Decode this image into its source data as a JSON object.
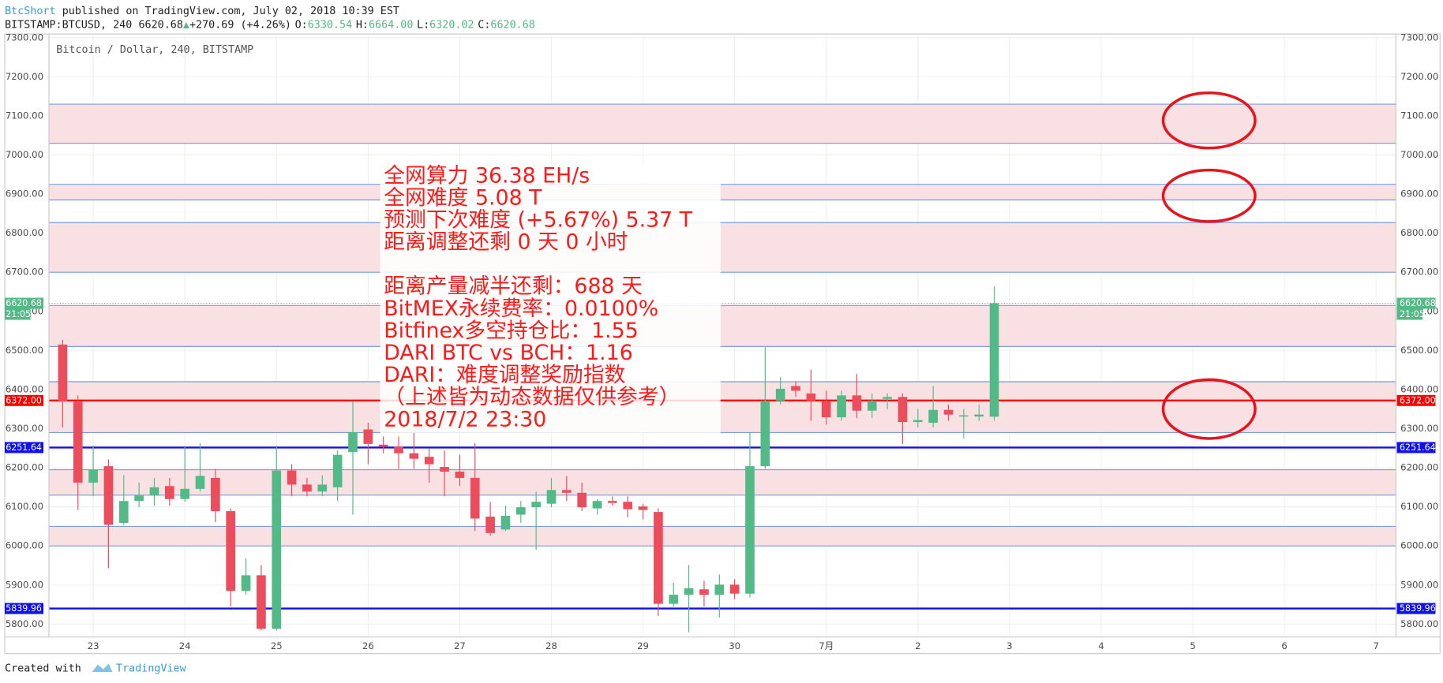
{
  "header": {
    "author": "BtcShort",
    "published": "published on TradingView.com, July 02, 2018 10:39 EST",
    "symbol": "BITSTAMP:BTCUSD, 240",
    "last": "6620.68",
    "arrow": "▲",
    "change": "+270.69 (+4.26%)",
    "ohlc": [
      {
        "label": "O:",
        "value": "6330.54"
      },
      {
        "label": "H:",
        "value": "6664.00"
      },
      {
        "label": "L:",
        "value": "6320.02"
      },
      {
        "label": "C:",
        "value": "6620.68"
      }
    ]
  },
  "footer": {
    "created": "Created with",
    "brand": "TradingView"
  },
  "chart_data": {
    "type": "candlestick",
    "title": "Bitcoin / Dollar, 240, BITSTAMP",
    "up_color": "#53b987",
    "down_color": "#eb4d5c",
    "open": [
      6515,
      6369,
      6162,
      6204,
      6059,
      6115,
      6129,
      6153,
      6120,
      6146,
      6174,
      6089,
      5885,
      5925,
      5788,
      6193,
      6157,
      6139,
      6150,
      6240,
      6298,
      6259,
      6254,
      6237,
      6228,
      6202,
      6190,
      6174,
      6075,
      6042,
      6080,
      6099,
      6108,
      6143,
      6136,
      6096,
      6115,
      6113,
      6101,
      6087,
      5852,
      5875,
      5889,
      5875,
      5901,
      5878,
      6204,
      6371,
      6409,
      6390,
      6371,
      6329,
      6385,
      6346,
      6376,
      6381,
      6317,
      6315,
      6348,
      6331,
      6331,
      6330.54
    ],
    "high": [
      6527,
      6385,
      6256,
      6221,
      6181,
      6162,
      6174,
      6174,
      6256,
      6263,
      6197,
      6096,
      5969,
      5951,
      6256,
      6209,
      6174,
      6181,
      6244,
      6369,
      6315,
      6280,
      6280,
      6291,
      6249,
      6244,
      6233,
      6263,
      6113,
      6103,
      6115,
      6139,
      6174,
      6179,
      6162,
      6120,
      6127,
      6127,
      6108,
      6096,
      5906,
      5951,
      5911,
      5927,
      5915,
      6291,
      6508,
      6432,
      6421,
      6451,
      6397,
      6397,
      6440,
      6390,
      6390,
      6390,
      6350,
      6409,
      6362,
      6350,
      6362,
      6664
    ],
    "low": [
      6303,
      6092,
      6127,
      5943,
      6054,
      6099,
      6103,
      6103,
      6113,
      6139,
      6061,
      5845,
      5875,
      5784,
      5784,
      6127,
      6127,
      6127,
      6115,
      6080,
      6209,
      6237,
      6197,
      6197,
      6162,
      6127,
      6153,
      6038,
      6026,
      6038,
      6059,
      5990,
      6099,
      6115,
      6089,
      6080,
      6103,
      6073,
      6068,
      5821,
      5845,
      5779,
      5845,
      5817,
      5864,
      5868,
      6197,
      6362,
      6381,
      6320,
      6310,
      6320,
      6327,
      6327,
      6350,
      6261,
      6303,
      6303,
      6320,
      6275,
      6320,
      6320.02
    ],
    "close": [
      6369,
      6162,
      6195,
      6054,
      6115,
      6129,
      6150,
      6120,
      6146,
      6179,
      6089,
      5885,
      5925,
      5788,
      6193,
      6157,
      6139,
      6157,
      6233,
      6291,
      6261,
      6254,
      6237,
      6223,
      6209,
      6190,
      6174,
      6070,
      6033,
      6077,
      6099,
      6113,
      6143,
      6136,
      6099,
      6115,
      6110,
      6094,
      6092,
      5852,
      5875,
      5892,
      5875,
      5901,
      5878,
      6204,
      6371,
      6402,
      6397,
      6371,
      6329,
      6385,
      6346,
      6371,
      6381,
      6317,
      6322,
      6348,
      6336,
      6334,
      6336,
      6620.68
    ],
    "ylim": [
      5767,
      7307
    ],
    "yticks": [
      {
        "value": 5800,
        "label": "5800.00"
      },
      {
        "value": 5900,
        "label": "5900.00"
      },
      {
        "value": 6000,
        "label": "6000.00"
      },
      {
        "value": 6100,
        "label": "6100.00"
      },
      {
        "value": 6200,
        "label": "6200.00"
      },
      {
        "value": 6300,
        "label": "6300.00"
      },
      {
        "value": 6400,
        "label": "6400.00"
      },
      {
        "value": 6500,
        "label": "6500.00"
      },
      {
        "value": 6600,
        "label": "6600.00"
      },
      {
        "value": 6700,
        "label": "6700.00"
      },
      {
        "value": 6800,
        "label": "6800.00"
      },
      {
        "value": 6900,
        "label": "6900.00"
      },
      {
        "value": 7000,
        "label": "7000.00"
      },
      {
        "value": 7100,
        "label": "7100.00"
      },
      {
        "value": 7200,
        "label": "7200.00"
      },
      {
        "value": 7300,
        "label": "7300.00"
      }
    ],
    "xlim": [
      -0.9,
      87.3
    ],
    "xticks": [
      {
        "value": 2,
        "label": "23"
      },
      {
        "value": 8,
        "label": "24"
      },
      {
        "value": 14,
        "label": "25"
      },
      {
        "value": 20,
        "label": "26"
      },
      {
        "value": 26,
        "label": "27"
      },
      {
        "value": 32,
        "label": "28"
      },
      {
        "value": 38,
        "label": "29"
      },
      {
        "value": 44,
        "label": "30"
      },
      {
        "value": 50,
        "label": "7月"
      },
      {
        "value": 56,
        "label": "2"
      },
      {
        "value": 62,
        "label": "3"
      },
      {
        "value": 68,
        "label": "4"
      },
      {
        "value": 74,
        "label": "5"
      },
      {
        "value": 80,
        "label": "6"
      },
      {
        "value": 86,
        "label": "7"
      }
    ],
    "grid": true,
    "zone_color": "#f9e1e3",
    "zone_border_color": "#7d9be0",
    "zones": [
      {
        "low": 7030,
        "high": 7130
      },
      {
        "low": 6885,
        "high": 6925
      },
      {
        "low": 6700,
        "high": 6827
      },
      {
        "low": 6510,
        "high": 6615
      },
      {
        "low": 6290,
        "high": 6420
      },
      {
        "low": 6130,
        "high": 6195
      },
      {
        "low": 6000,
        "high": 6050
      }
    ],
    "price_lines": [
      {
        "value": 6372,
        "label": "6372.00",
        "color": "#ff0000"
      },
      {
        "value": 6251.64,
        "color": "#1010ee"
      },
      {
        "value": 5839.96,
        "color": "#1010ee"
      }
    ],
    "last_price": {
      "value": 6620.68,
      "countdown": "21:05",
      "color": "#53b987"
    },
    "annotation": [
      "全网算力 36.38 EH/s",
      "全网难度 5.08 T",
      "预测下次难度 (+5.67%) 5.37 T",
      "距离调整还剩 0 天 0 小时",
      "距离产量减半还剩：688 天",
      "BitMEX永续费率：0.0100%",
      "Bitfinex多空持仓比：1.55",
      "DARI BTC vs BCH：1.16",
      "DARI：难度调整奖励指数",
      "（上述皆为动态数据仅供参考）",
      "2018/7/2 23:30"
    ]
  }
}
